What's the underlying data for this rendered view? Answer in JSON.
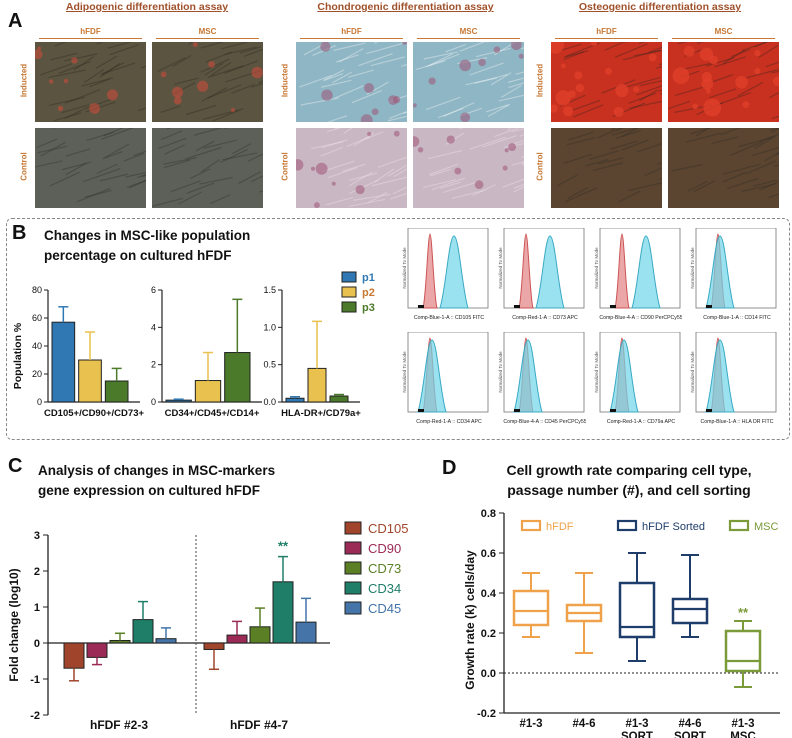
{
  "panel_a": {
    "letter": "A",
    "assays": [
      {
        "title": "Adipogenic differentiation assay",
        "cols": [
          "hFDF",
          "MSC"
        ],
        "rows": [
          "Inducted",
          "Control"
        ],
        "colors": {
          "inducted": "#5a5440",
          "control": "#5c6058",
          "stain": "#d44a3a"
        }
      },
      {
        "title": "Chondrogenic differentiation assay",
        "cols": [
          "hFDF",
          "MSC"
        ],
        "rows": [
          "Inducted",
          "Control"
        ],
        "colors": {
          "inducted": "#8fb6c4",
          "control": "#c9b8c4",
          "stain": "#9f5476"
        }
      },
      {
        "title": "Osteogenic differentiation assay",
        "cols": [
          "hFDF",
          "MSC"
        ],
        "rows": [
          "Inducted",
          "Control"
        ],
        "colors": {
          "inducted": "#c8301f",
          "control": "#5b4430",
          "stain": "#e0402a"
        }
      }
    ]
  },
  "panel_b": {
    "letter": "B",
    "title_line1": "Changes in MSC-like population",
    "title_line2": "percentage on cultured hFDF",
    "ylabel": "Population %",
    "legend": [
      {
        "name": "p1",
        "color": "#2f78b3"
      },
      {
        "name": "p2",
        "color": "#e8c14e"
      },
      {
        "name": "p3",
        "color": "#4a7a2a"
      }
    ],
    "flow_ylabel": "Normalized To Mode",
    "flow_plots": [
      {
        "label": "Comp-Blue-1-A :: CD105 FITC",
        "positive": true
      },
      {
        "label": "Comp-Red-1-A :: CD73 APC",
        "positive": true
      },
      {
        "label": "Comp-Blue-4-A :: CD90 PerCPCy55",
        "positive": true
      },
      {
        "label": "Comp-Blue-1-A :: CD14 FITC",
        "positive": false
      },
      {
        "label": "Comp-Red-1-A :: CD34 APC",
        "positive": false
      },
      {
        "label": "Comp-Blue-4-A :: CD45 PerCPCy55",
        "positive": false
      },
      {
        "label": "Comp-Red-1-A :: CD79a APC",
        "positive": false
      },
      {
        "label": "Comp-Blue-1-A :: HLA DR FITC",
        "positive": false
      }
    ]
  },
  "panel_c": {
    "letter": "C",
    "title_line1": "Analysis of changes in MSC-markers",
    "title_line2": "gene expression on cultured hFDF",
    "significance": "**"
  },
  "panel_d": {
    "letter": "D",
    "title_line1": "Cell growth rate comparing cell type,",
    "title_line2": "passage number (#), and cell sorting",
    "significance": "**"
  },
  "chart_data": [
    {
      "type": "bar",
      "categories": [
        "CD105+/CD90+/CD73+"
      ],
      "series": [
        {
          "name": "p1",
          "values": [
            57
          ],
          "error": [
            11
          ]
        },
        {
          "name": "p2",
          "values": [
            30
          ],
          "error": [
            20
          ]
        },
        {
          "name": "p3",
          "values": [
            15
          ],
          "error": [
            9
          ]
        }
      ],
      "xlabel": "CD105+/CD90+/CD73+",
      "ylabel": "Population %",
      "ylim": [
        0,
        80
      ],
      "yticks": [
        "0",
        "20",
        "40",
        "60",
        "80"
      ]
    },
    {
      "type": "bar",
      "categories": [
        "CD34+/CD45+/CD14+"
      ],
      "series": [
        {
          "name": "p1",
          "values": [
            0.1
          ],
          "error": [
            0.05
          ]
        },
        {
          "name": "p2",
          "values": [
            1.15
          ],
          "error": [
            1.5
          ]
        },
        {
          "name": "p3",
          "values": [
            2.65
          ],
          "error": [
            2.85
          ]
        }
      ],
      "xlabel": "CD34+/CD45+/CD14+",
      "ylim": [
        0,
        6
      ],
      "yticks": [
        "0",
        "2",
        "4",
        "6"
      ]
    },
    {
      "type": "bar",
      "categories": [
        "HLA-DR+/CD79a+"
      ],
      "series": [
        {
          "name": "p1",
          "values": [
            0.05
          ],
          "error": [
            0.02
          ]
        },
        {
          "name": "p2",
          "values": [
            0.45
          ],
          "error": [
            0.63
          ]
        },
        {
          "name": "p3",
          "values": [
            0.08
          ],
          "error": [
            0.02
          ]
        }
      ],
      "xlabel": "HLA-DR+/CD79a+",
      "ylim": [
        0,
        1.5
      ],
      "yticks": [
        "0.0",
        "0.5",
        "1.0",
        "1.5"
      ]
    },
    {
      "type": "bar",
      "categories": [
        "hFDF #2-3",
        "hFDF #4-7"
      ],
      "series": [
        {
          "name": "CD105",
          "color": "#a0452c",
          "values": [
            -0.7,
            -0.18
          ],
          "error": [
            0.35,
            0.55
          ]
        },
        {
          "name": "CD90",
          "color": "#9b2b56",
          "values": [
            -0.4,
            0.22
          ],
          "error": [
            0.2,
            0.38
          ]
        },
        {
          "name": "CD73",
          "color": "#5b7f24",
          "values": [
            0.07,
            0.45
          ],
          "error": [
            0.2,
            0.52
          ]
        },
        {
          "name": "CD34",
          "color": "#1f7e68",
          "values": [
            0.65,
            1.7
          ],
          "error": [
            0.5,
            0.7
          ]
        },
        {
          "name": "CD45",
          "color": "#4474a8",
          "values": [
            0.12,
            0.58
          ],
          "error": [
            0.3,
            0.66
          ]
        }
      ],
      "ylabel": "Fold change (log10)",
      "ylim": [
        -2,
        3
      ],
      "yticks": [
        "-2",
        "-1",
        "0",
        "1",
        "2",
        "3"
      ]
    },
    {
      "type": "box",
      "categories": [
        "#1-3",
        "#4-6",
        "#1-3 SORT",
        "#4-6 SORT",
        "#1-3 MSC"
      ],
      "category_lines": [
        [
          "#1-3"
        ],
        [
          "#4-6"
        ],
        [
          "#1-3",
          "SORT"
        ],
        [
          "#4-6",
          "SORT"
        ],
        [
          "#1-3",
          "MSC"
        ]
      ],
      "legend": [
        {
          "name": "hFDF",
          "color": "#f0a24a"
        },
        {
          "name": "hFDF Sorted",
          "color": "#1f3d6b"
        },
        {
          "name": "MSC",
          "color": "#7b9a3a"
        }
      ],
      "boxes": [
        {
          "group": "hFDF",
          "min": 0.18,
          "q1": 0.24,
          "median": 0.31,
          "q3": 0.41,
          "max": 0.5
        },
        {
          "group": "hFDF",
          "min": 0.1,
          "q1": 0.26,
          "median": 0.3,
          "q3": 0.34,
          "max": 0.5
        },
        {
          "group": "hFDF Sorted",
          "min": 0.06,
          "q1": 0.18,
          "median": 0.23,
          "q3": 0.45,
          "max": 0.6
        },
        {
          "group": "hFDF Sorted",
          "min": 0.18,
          "q1": 0.25,
          "median": 0.32,
          "q3": 0.37,
          "max": 0.59
        },
        {
          "group": "MSC",
          "min": -0.07,
          "q1": 0.01,
          "median": 0.06,
          "q3": 0.21,
          "max": 0.26
        }
      ],
      "ylabel": "Growth rate (k) cells/day",
      "ylim": [
        -0.2,
        0.8
      ],
      "yticks": [
        "-0.2",
        "0.0",
        "0.2",
        "0.4",
        "0.6",
        "0.8"
      ]
    }
  ]
}
